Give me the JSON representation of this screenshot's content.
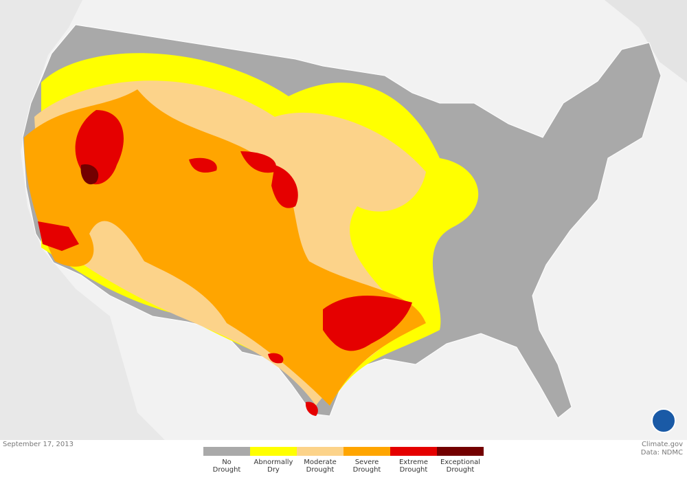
{
  "date": "September 17, 2013",
  "credit": {
    "site": "Climate.gov",
    "data": "Data: NDMC"
  },
  "legend": [
    {
      "label": "No Drought",
      "color": "#a9a9a9"
    },
    {
      "label": "Abnormally Dry",
      "color": "#ffff00"
    },
    {
      "label": "Moderate Drought",
      "color": "#fcd38a"
    },
    {
      "label": "Severe Drought",
      "color": "#ffa500"
    },
    {
      "label": "Extreme Drought",
      "color": "#e50000"
    },
    {
      "label": "Exceptional Drought",
      "color": "#730000"
    }
  ]
}
